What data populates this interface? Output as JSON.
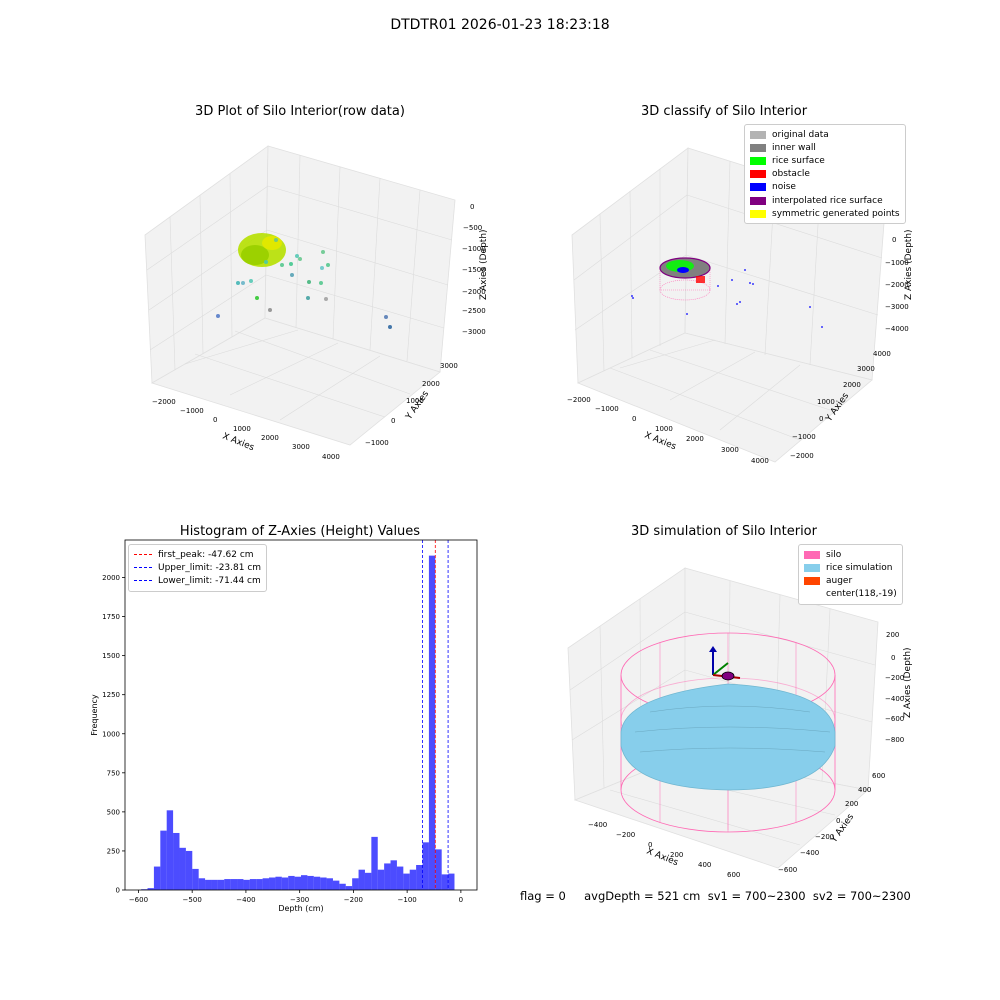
{
  "suptitle": "DTDTR01 2026-01-23 18:23:18",
  "chart_data": [
    {
      "type": "scatter",
      "title": "3D Plot of Silo Interior(row data)",
      "xlabel": "X Axies",
      "ylabel": "Y Axies",
      "zlabel": "Z Axies (Depth)",
      "xticks": [
        "−2000",
        "−1000",
        "0",
        "1000",
        "2000",
        "3000",
        "4000"
      ],
      "yticks": [
        "−1000",
        "0",
        "1000",
        "2000",
        "3000"
      ],
      "zticks": [
        "0",
        "−500",
        "−1000",
        "−1500",
        "−2000",
        "−2500",
        "−3000"
      ]
    },
    {
      "type": "scatter",
      "title": "3D classify of Silo Interior",
      "xlabel": "X Axies",
      "ylabel": "Y Axies",
      "zlabel": "Z Axies (Depth)",
      "xticks": [
        "−2000",
        "−1000",
        "0",
        "1000",
        "2000",
        "3000",
        "4000"
      ],
      "yticks": [
        "−2000",
        "−1000",
        "0",
        "1000",
        "2000",
        "3000",
        "4000"
      ],
      "zticks": [
        "1000",
        "0",
        "−1000",
        "−2000",
        "−3000",
        "−4000"
      ],
      "legend": [
        {
          "label": "original data",
          "color": "#b3b3b3"
        },
        {
          "label": "inner wall",
          "color": "#808080"
        },
        {
          "label": "rice surface",
          "color": "#00ff00"
        },
        {
          "label": "obstacle",
          "color": "#ff0000"
        },
        {
          "label": "noise",
          "color": "#0000ff"
        },
        {
          "label": "interpolated rice surface",
          "color": "#800080"
        },
        {
          "label": "symmetric generated points",
          "color": "#ffff00"
        }
      ]
    },
    {
      "type": "bar",
      "title": "Histogram of Z-Axies (Height) Values",
      "xlabel": "Depth (cm)",
      "ylabel": "Frequency",
      "xlim": [
        -625,
        30
      ],
      "ylim": [
        0,
        2240
      ],
      "xticks": [
        -600,
        -500,
        -400,
        -300,
        -200,
        -100,
        0
      ],
      "xtick_labels": [
        "−600",
        "−500",
        "−400",
        "−300",
        "−200",
        "−100",
        "0"
      ],
      "yticks": [
        0,
        250,
        500,
        750,
        1000,
        1250,
        1500,
        1750,
        2000
      ],
      "bar_color": "#0000ff",
      "bin_width": 11.9,
      "bins_left": [
        -595,
        -583.1,
        -571.2,
        -559.3,
        -547.4,
        -535.5,
        -523.6,
        -511.7,
        -499.8,
        -487.9,
        -476,
        -464.1,
        -452.2,
        -440.3,
        -428.4,
        -416.5,
        -404.6,
        -392.7,
        -380.8,
        -368.9,
        -357,
        -345.1,
        -333.2,
        -321.3,
        -309.4,
        -297.5,
        -285.6,
        -273.7,
        -261.8,
        -249.9,
        -238,
        -226.1,
        -214.2,
        -202.3,
        -190.4,
        -178.5,
        -166.6,
        -154.7,
        -142.8,
        -130.9,
        -119,
        -107.1,
        -95.2,
        -83.3,
        -71.4,
        -59.5,
        -47.6,
        -35.7,
        -23.8,
        -11.9
      ],
      "values": [
        5,
        12,
        150,
        380,
        510,
        365,
        270,
        250,
        135,
        75,
        65,
        65,
        65,
        70,
        70,
        70,
        65,
        70,
        70,
        75,
        80,
        85,
        80,
        90,
        85,
        95,
        90,
        85,
        80,
        75,
        60,
        40,
        25,
        75,
        130,
        110,
        340,
        130,
        170,
        190,
        150,
        105,
        130,
        160,
        305,
        2140,
        260,
        100,
        105,
        0
      ],
      "lines": [
        {
          "label": "first_peak: -47.62 cm",
          "x": -47.62,
          "color": "#ff0000"
        },
        {
          "label": "Upper_limit: -23.81 cm",
          "x": -23.81,
          "color": "#0000ff"
        },
        {
          "label": "Lower_limit: -71.44 cm",
          "x": -71.44,
          "color": "#0000ff"
        }
      ]
    },
    {
      "type": "scatter",
      "title": "3D simulation of Silo Interior",
      "xlabel": "X Axies",
      "ylabel": "Y Axies",
      "zlabel": "Z Axies (Depth)",
      "xticks": [
        "−400",
        "−200",
        "0",
        "200",
        "400",
        "600"
      ],
      "yticks": [
        "−600",
        "−400",
        "−200",
        "0",
        "200",
        "400",
        "600"
      ],
      "zticks": [
        "200",
        "0",
        "−200",
        "−400",
        "−600",
        "−800"
      ],
      "legend": [
        {
          "label": "silo",
          "color": "#ff69b4"
        },
        {
          "label": "rice simulation",
          "color": "#87ceeb"
        },
        {
          "label": "auger",
          "color": "#ff4500"
        },
        {
          "label": "center(118,-19)",
          "color": ""
        }
      ]
    }
  ],
  "footer": "flag = 0     avgDepth = 521 cm  sv1 = 700~2300  sv2 = 700~2300"
}
